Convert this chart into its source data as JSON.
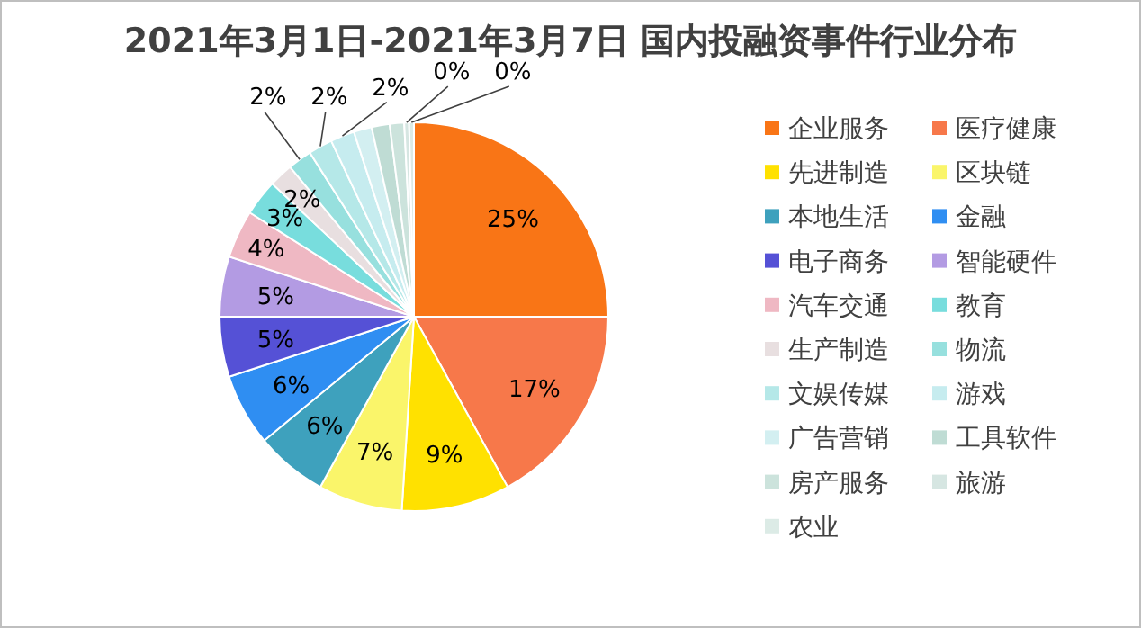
{
  "chart_data": {
    "type": "pie",
    "title": "2021年3月1日-2021年3月7日 国内投融资事件行业分布",
    "categories": [
      "企业服务",
      "医疗健康",
      "先进制造",
      "区块链",
      "本地生活",
      "金融",
      "电子商务",
      "智能硬件",
      "汽车交通",
      "教育",
      "生产制造",
      "物流",
      "文娱传媒",
      "游戏",
      "广告营销",
      "工具软件",
      "房产服务",
      "旅游",
      "农业"
    ],
    "values": [
      25,
      17,
      9,
      7,
      6,
      6,
      5,
      5,
      4,
      3,
      2,
      2,
      2,
      2,
      1.5,
      1.5,
      1.2,
      0.4,
      0.4
    ],
    "value_labels": [
      "25%",
      "17%",
      "9%",
      "7%",
      "6%",
      "6%",
      "5%",
      "5%",
      "4%",
      "3%",
      "2%",
      "2%",
      "2%",
      "2%",
      null,
      null,
      null,
      "0%",
      "0%"
    ],
    "colors": [
      "#f97516",
      "#f7784a",
      "#ffe100",
      "#faf56a",
      "#3ea1bd",
      "#2f8ef2",
      "#5551d6",
      "#b39be3",
      "#efb8c3",
      "#78dddd",
      "#e8dfe0",
      "#97e0de",
      "#b5e8e8",
      "#c6ecef",
      "#d3eff1",
      "#bfdcd4",
      "#cce3dc",
      "#d6e6e2",
      "#dcebe6"
    ],
    "legend": "right"
  }
}
